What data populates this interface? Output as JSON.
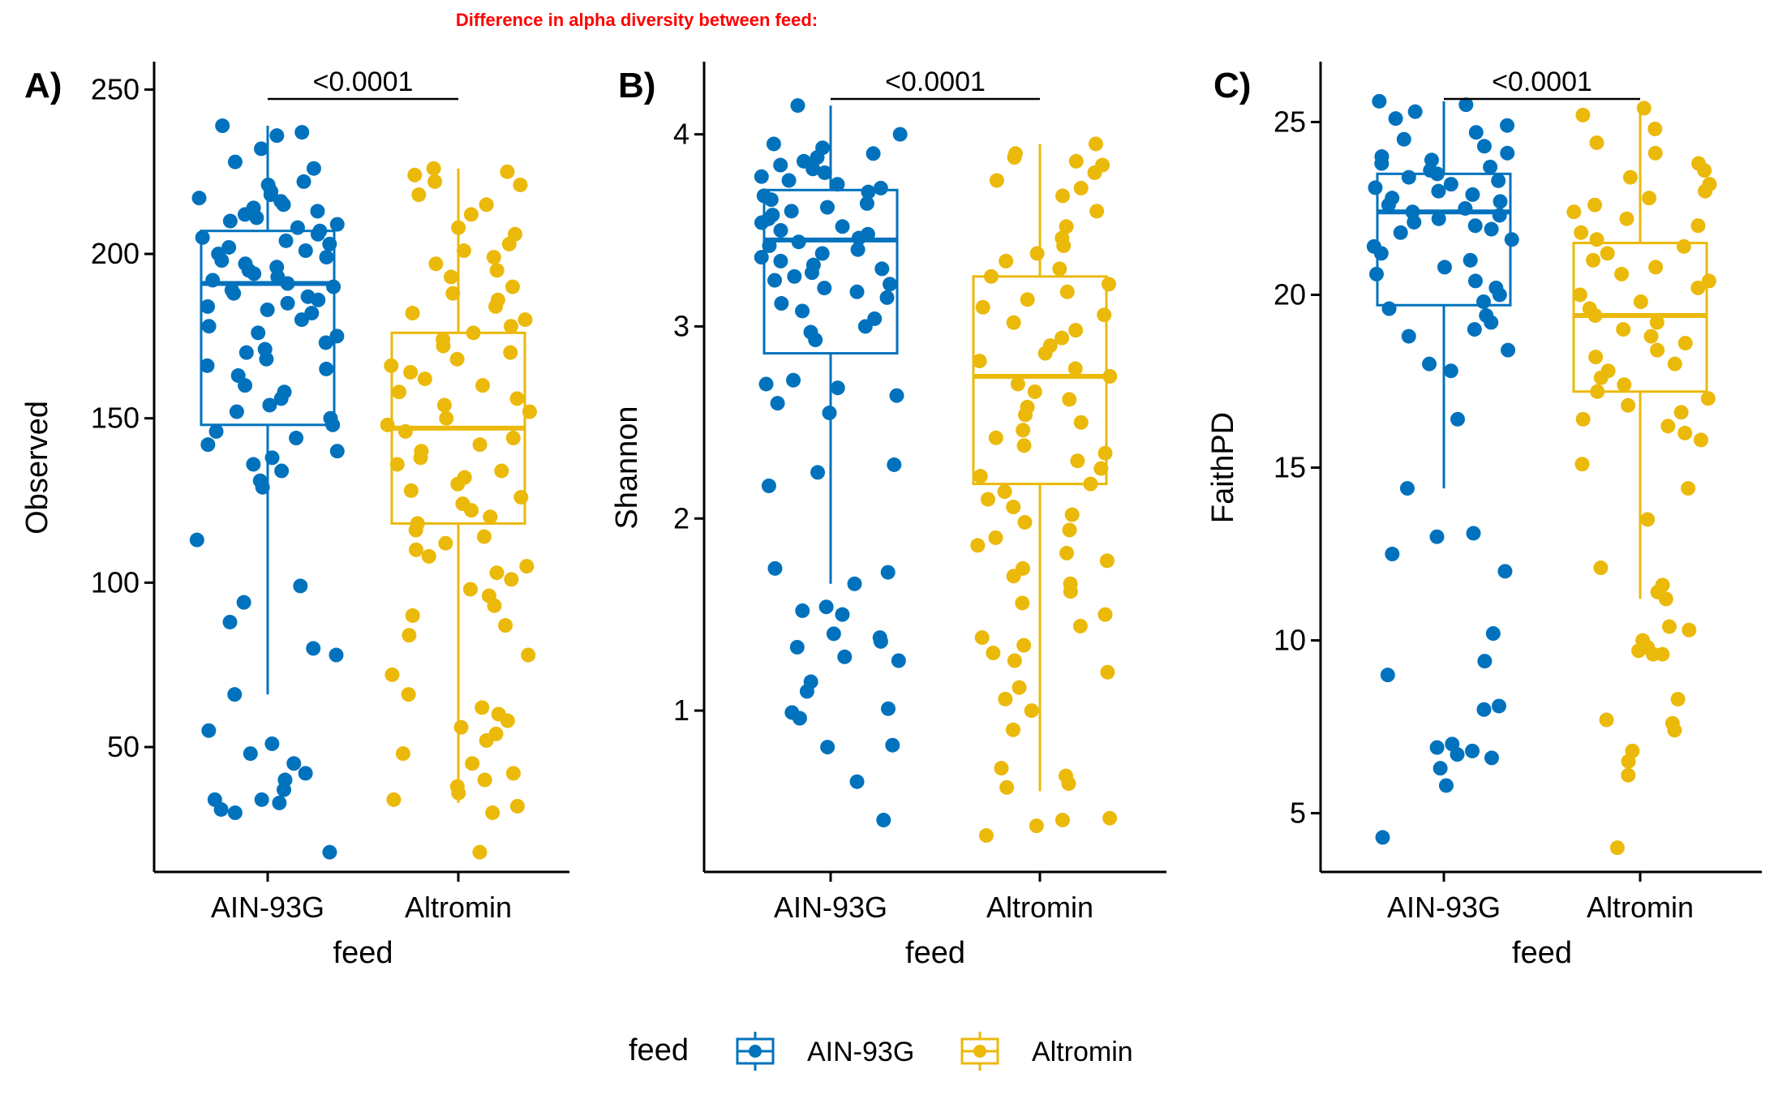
{
  "title": "Difference in alpha diversity between feed:",
  "colors": {
    "AIN-93G": "#0072BD",
    "Altromin": "#EBB90A"
  },
  "legend": {
    "title": "feed",
    "entries": [
      "AIN-93G",
      "Altromin"
    ],
    "position": "bottom"
  },
  "chart_data": [
    {
      "type": "box",
      "panel_label": "A)",
      "xlabel": "feed",
      "ylabel": "Observed",
      "categories": [
        "AIN-93G",
        "Altromin"
      ],
      "ylim": [
        12,
        258
      ],
      "yticks": [
        50,
        100,
        150,
        200,
        250
      ],
      "p_value": "<0.0001",
      "boxes": [
        {
          "group": "AIN-93G",
          "whisker_low": 66,
          "q1": 148,
          "median": 191,
          "q3": 207,
          "whisker_high": 239
        },
        {
          "group": "Altromin",
          "whisker_low": 33,
          "q1": 118,
          "median": 147,
          "q3": 176,
          "whisker_high": 226
        }
      ],
      "points": {
        "AIN-93G": [
          239,
          237,
          236,
          232,
          228,
          226,
          222,
          221,
          219,
          218,
          217,
          216,
          215,
          214,
          213,
          212,
          211,
          210,
          209,
          208,
          207,
          206,
          205,
          204,
          203,
          202,
          201,
          200,
          199,
          198,
          197,
          196,
          195,
          194,
          193,
          192,
          191,
          190,
          189,
          188,
          187,
          186,
          185,
          184,
          183,
          182,
          180,
          178,
          176,
          175,
          173,
          171,
          170,
          168,
          166,
          165,
          163,
          160,
          158,
          156,
          154,
          152,
          150,
          148,
          146,
          144,
          142,
          140,
          138,
          136,
          134,
          131,
          129,
          113,
          99,
          94,
          88,
          80,
          78,
          66,
          55,
          51,
          48,
          45,
          42,
          40,
          37,
          34,
          34,
          33,
          31,
          30,
          18
        ],
        "Altromin": [
          226,
          225,
          224,
          222,
          221,
          218,
          215,
          212,
          208,
          206,
          203,
          201,
          199,
          197,
          195,
          193,
          190,
          188,
          186,
          184,
          182,
          180,
          178,
          176,
          174,
          172,
          170,
          168,
          166,
          164,
          162,
          160,
          158,
          156,
          154,
          152,
          150,
          148,
          146,
          144,
          142,
          140,
          138,
          136,
          134,
          132,
          130,
          128,
          126,
          124,
          122,
          120,
          118,
          116,
          114,
          112,
          110,
          108,
          105,
          103,
          101,
          98,
          96,
          93,
          90,
          87,
          84,
          78,
          72,
          66,
          62,
          60,
          58,
          56,
          54,
          52,
          48,
          45,
          42,
          40,
          38,
          36,
          34,
          32,
          30,
          18
        ]
      }
    },
    {
      "type": "box",
      "panel_label": "B)",
      "xlabel": "feed",
      "ylabel": "Shannon",
      "categories": [
        "AIN-93G",
        "Altromin"
      ],
      "ylim": [
        0.16,
        4.37
      ],
      "yticks": [
        1,
        2,
        3,
        4
      ],
      "p_value": "<0.0001",
      "boxes": [
        {
          "group": "AIN-93G",
          "whisker_low": 1.66,
          "q1": 2.86,
          "median": 3.45,
          "q3": 3.71,
          "whisker_high": 4.15
        },
        {
          "group": "Altromin",
          "whisker_low": 0.58,
          "q1": 2.18,
          "median": 2.74,
          "q3": 3.26,
          "whisker_high": 3.95
        }
      ],
      "points": {
        "AIN-93G": [
          4.15,
          4.0,
          3.95,
          3.93,
          3.9,
          3.88,
          3.86,
          3.84,
          3.82,
          3.8,
          3.78,
          3.76,
          3.74,
          3.72,
          3.7,
          3.68,
          3.66,
          3.64,
          3.62,
          3.6,
          3.58,
          3.56,
          3.54,
          3.52,
          3.5,
          3.48,
          3.46,
          3.44,
          3.42,
          3.4,
          3.38,
          3.36,
          3.34,
          3.32,
          3.3,
          3.28,
          3.26,
          3.24,
          3.22,
          3.2,
          3.18,
          3.15,
          3.12,
          3.08,
          3.04,
          3.0,
          2.97,
          2.93,
          2.72,
          2.7,
          2.68,
          2.64,
          2.6,
          2.55,
          2.28,
          2.24,
          2.17,
          1.74,
          1.72,
          1.66,
          1.54,
          1.52,
          1.5,
          1.4,
          1.38,
          1.36,
          1.33,
          1.28,
          1.26,
          1.15,
          1.1,
          1.01,
          0.99,
          0.96,
          0.82,
          0.81,
          0.63,
          0.43
        ],
        "Altromin": [
          3.95,
          3.9,
          3.88,
          3.86,
          3.84,
          3.8,
          3.76,
          3.72,
          3.68,
          3.6,
          3.52,
          3.46,
          3.42,
          3.38,
          3.34,
          3.3,
          3.26,
          3.22,
          3.18,
          3.14,
          3.1,
          3.06,
          3.02,
          2.98,
          2.94,
          2.9,
          2.86,
          2.82,
          2.78,
          2.74,
          2.7,
          2.66,
          2.62,
          2.58,
          2.54,
          2.5,
          2.46,
          2.42,
          2.38,
          2.34,
          2.3,
          2.26,
          2.22,
          2.18,
          2.14,
          2.1,
          2.06,
          2.02,
          1.98,
          1.94,
          1.9,
          1.86,
          1.82,
          1.78,
          1.74,
          1.7,
          1.66,
          1.62,
          1.56,
          1.5,
          1.44,
          1.38,
          1.34,
          1.3,
          1.26,
          1.2,
          1.12,
          1.06,
          1.0,
          0.9,
          0.7,
          0.66,
          0.62,
          0.6,
          0.44,
          0.43,
          0.4,
          0.35
        ]
      }
    },
    {
      "type": "box",
      "panel_label": "C)",
      "xlabel": "feed",
      "ylabel": "FaithPD",
      "categories": [
        "AIN-93G",
        "Altromin"
      ],
      "ylim": [
        3.3,
        26.7
      ],
      "yticks": [
        5,
        10,
        15,
        20,
        25
      ],
      "p_value": "<0.0001",
      "boxes": [
        {
          "group": "AIN-93G",
          "whisker_low": 14.4,
          "q1": 19.7,
          "median": 22.4,
          "q3": 23.5,
          "whisker_high": 25.6
        },
        {
          "group": "Altromin",
          "whisker_low": 11.2,
          "q1": 17.2,
          "median": 19.4,
          "q3": 21.5,
          "whisker_high": 25.4
        }
      ],
      "points": {
        "AIN-93G": [
          25.6,
          25.5,
          25.3,
          25.1,
          24.9,
          24.7,
          24.5,
          24.3,
          24.1,
          24.0,
          23.9,
          23.8,
          23.7,
          23.6,
          23.5,
          23.4,
          23.3,
          23.2,
          23.1,
          23.0,
          22.9,
          22.8,
          22.7,
          22.6,
          22.5,
          22.4,
          22.3,
          22.2,
          22.1,
          22.0,
          21.9,
          21.8,
          21.6,
          21.4,
          21.2,
          21.0,
          20.8,
          20.6,
          20.4,
          20.2,
          20.0,
          19.8,
          19.6,
          19.4,
          19.2,
          19.0,
          18.8,
          18.4,
          18.0,
          17.8,
          16.4,
          14.4,
          13.1,
          13.0,
          12.5,
          12.0,
          10.2,
          9.4,
          9.0,
          8.1,
          8.0,
          7.0,
          6.9,
          6.8,
          6.7,
          6.6,
          6.3,
          5.8,
          4.3
        ],
        "Altromin": [
          25.4,
          25.2,
          24.8,
          24.4,
          24.1,
          23.8,
          23.6,
          23.4,
          23.2,
          23.0,
          22.8,
          22.6,
          22.4,
          22.2,
          22.0,
          21.8,
          21.6,
          21.4,
          21.2,
          21.0,
          20.8,
          20.6,
          20.4,
          20.2,
          20.0,
          19.8,
          19.6,
          19.4,
          19.2,
          19.0,
          18.8,
          18.6,
          18.4,
          18.2,
          18.0,
          17.8,
          17.6,
          17.4,
          17.2,
          17.0,
          16.8,
          16.6,
          16.4,
          16.2,
          16.0,
          15.8,
          15.1,
          14.4,
          13.5,
          12.1,
          11.6,
          11.4,
          11.2,
          10.4,
          10.3,
          10.0,
          9.8,
          9.7,
          9.6,
          9.6,
          8.3,
          7.7,
          7.6,
          7.4,
          6.8,
          6.5,
          6.1,
          4.0
        ]
      }
    }
  ]
}
